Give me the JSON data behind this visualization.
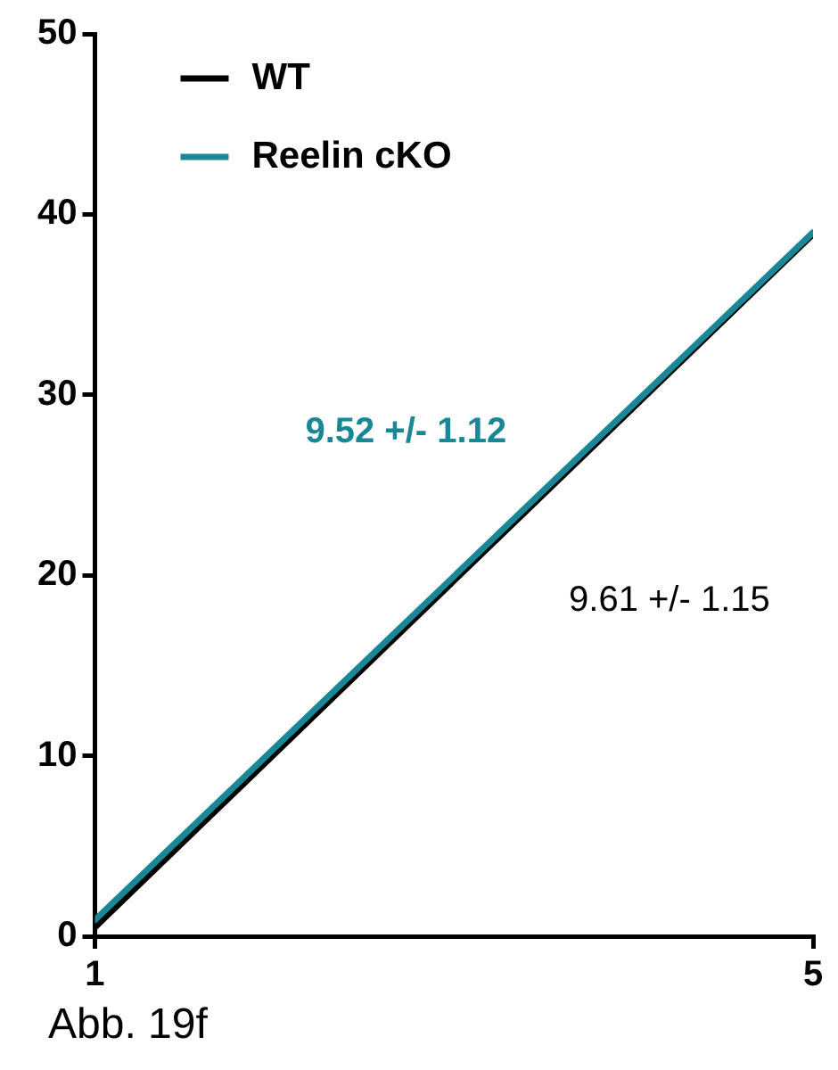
{
  "chart_data": {
    "type": "line",
    "x": [
      1,
      5
    ],
    "series": [
      {
        "name": "WT",
        "color": "#000000",
        "values": [
          0.5,
          38.9
        ]
      },
      {
        "name": "Reelin cKO",
        "color": "#1a8796",
        "values": [
          0.9,
          39.0
        ]
      }
    ],
    "xlim": [
      1,
      5
    ],
    "xticks": [
      1,
      5
    ],
    "ylim": [
      0,
      50
    ],
    "yticks": [
      0,
      10,
      20,
      30,
      40,
      50
    ],
    "grid": false,
    "legend": "top left",
    "marker": "none",
    "line_style": "solid",
    "annotations": [
      "9.61 +/- 1.15",
      "9.52 +/- 1.12",
      "Abb. 19f"
    ]
  }
}
